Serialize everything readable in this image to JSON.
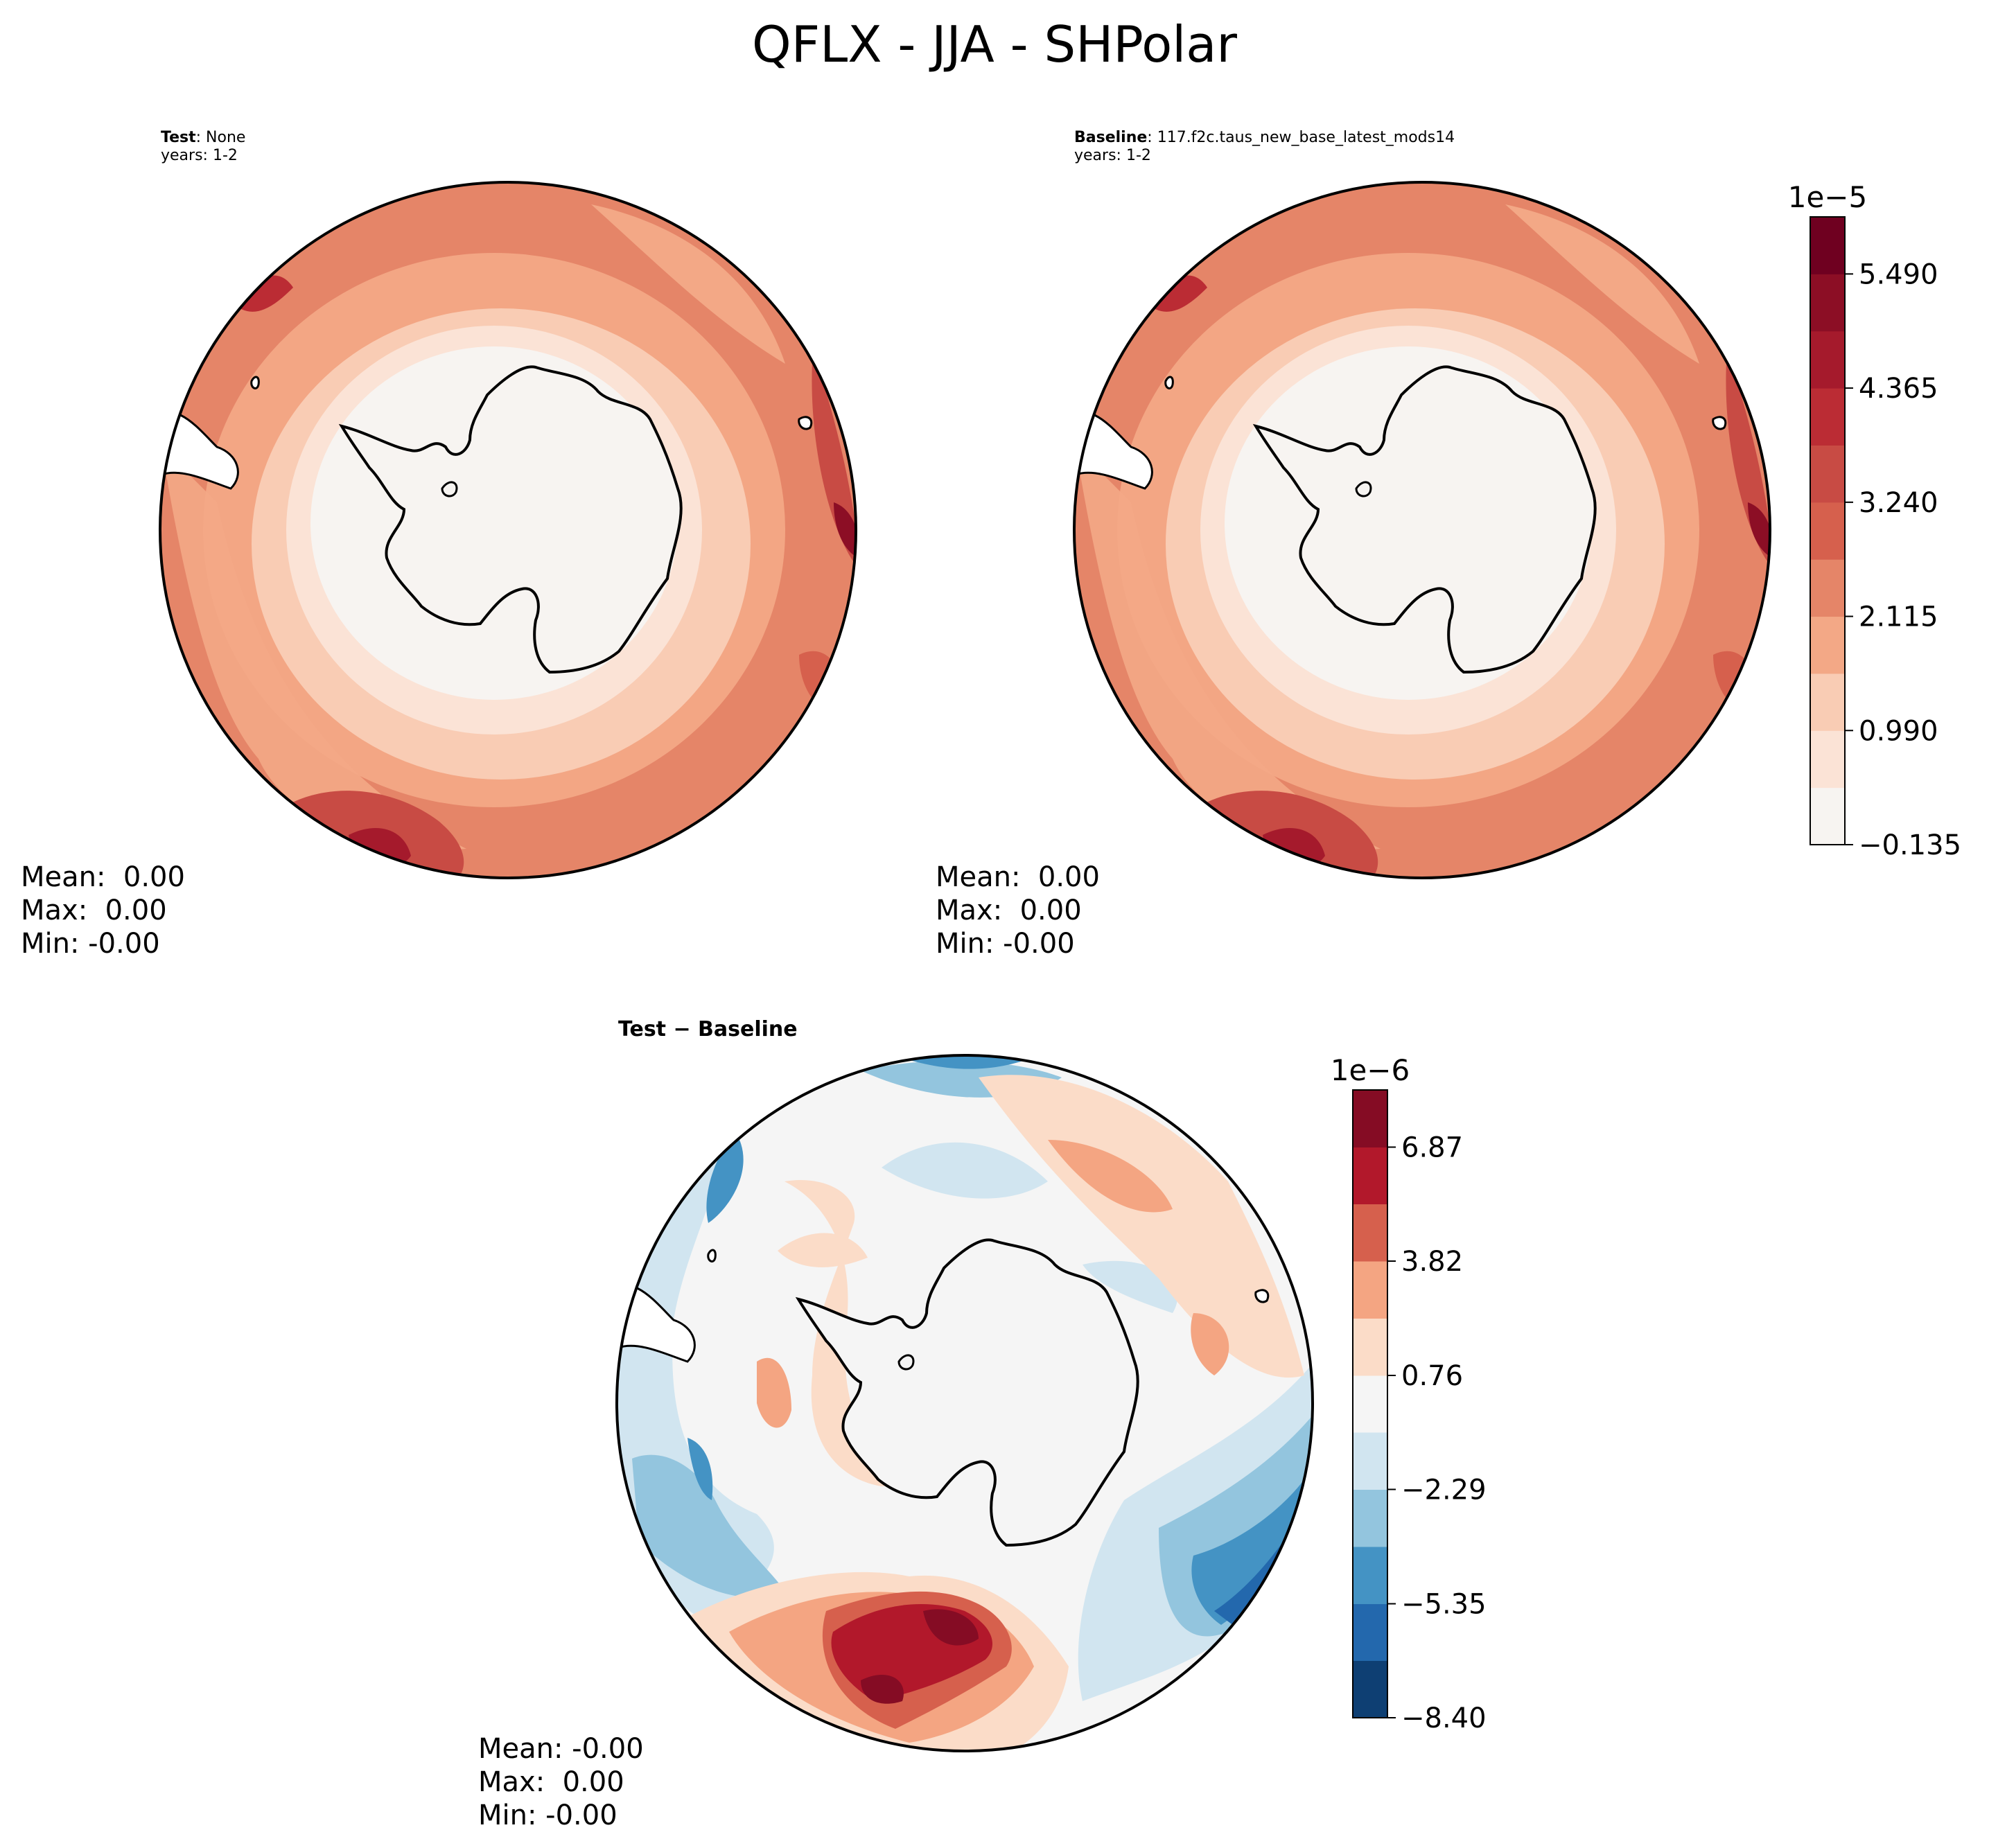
{
  "figure": {
    "title": "QFLX - JJA - SHPolar"
  },
  "panels": {
    "test": {
      "label_bold": "Test",
      "label_rest": ": None",
      "years": "years: 1-2",
      "stats": [
        "Mean:  0.00",
        "Max:  0.00",
        "Min: -0.00"
      ]
    },
    "baseline": {
      "label_bold": "Baseline",
      "label_rest": ": 117.f2c.taus_new_base_latest_mods14",
      "years": "years: 1-2",
      "stats": [
        "Mean:  0.00",
        "Max:  0.00",
        "Min: -0.00"
      ]
    },
    "diff": {
      "title": "Test − Baseline",
      "stats": [
        "Mean: -0.00",
        "Max:  0.00",
        "Min: -0.00"
      ]
    }
  },
  "chart_data": [
    {
      "type": "heatmap",
      "name": "test",
      "projection": "south-polar-stereographic",
      "colormap": "RdBu_r",
      "levels": [
        -0.135,
        0.4275,
        0.99,
        1.5525,
        2.115,
        2.6775,
        3.24,
        3.8025,
        4.365,
        4.9275,
        5.49,
        6.0525
      ],
      "scale_exponent": "1e−5",
      "ticks": [
        -0.135,
        0.99,
        2.115,
        3.24,
        4.365,
        5.49
      ]
    },
    {
      "type": "heatmap",
      "name": "baseline",
      "projection": "south-polar-stereographic",
      "colormap": "RdBu_r",
      "levels": [
        -0.135,
        0.4275,
        0.99,
        1.5525,
        2.115,
        2.6775,
        3.24,
        3.8025,
        4.365,
        4.9275,
        5.49,
        6.0525
      ],
      "scale_exponent": "1e−5",
      "tick_labels": [
        "−0.135",
        "0.990",
        "2.115",
        "3.240",
        "4.365",
        "5.490"
      ],
      "band_colors": [
        "#f7f4f1",
        "#fbe3d6",
        "#f9ccb4",
        "#f3a886",
        "#e58568",
        "#d6604d",
        "#c84b44",
        "#bb2c34",
        "#a51a2c",
        "#8c0e25",
        "#6f0020"
      ]
    },
    {
      "type": "heatmap",
      "name": "test-baseline",
      "projection": "south-polar-stereographic",
      "colormap": "RdBu_r",
      "levels": [
        -8.4,
        -6.87,
        -5.35,
        -3.82,
        -2.29,
        -0.76,
        0.76,
        2.29,
        3.82,
        5.35,
        6.87,
        8.4
      ],
      "scale_exponent": "1e−6",
      "tick_labels": [
        "−8.40",
        "−5.35",
        "−2.29",
        "0.76",
        "3.82",
        "6.87"
      ],
      "band_colors": [
        "#0e3f73",
        "#2368ad",
        "#4493c4",
        "#93c5de",
        "#d1e5f0",
        "#f5f5f5",
        "#fbdcc8",
        "#f4a582",
        "#d6604d",
        "#b2182b",
        "#850c24"
      ]
    }
  ]
}
